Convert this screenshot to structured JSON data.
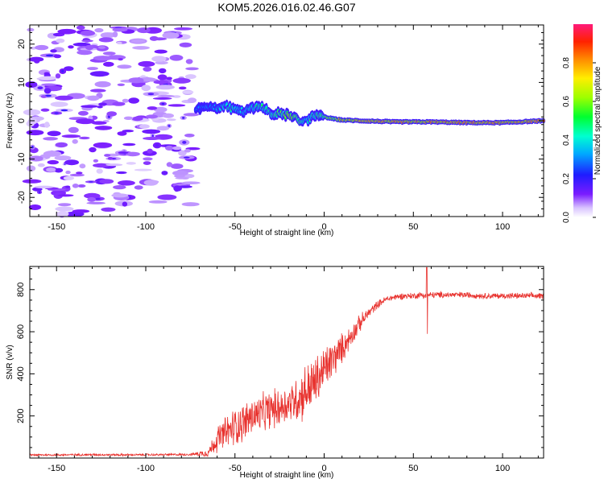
{
  "title": "KOM5.2026.016.02.46.G07",
  "chart_data": [
    {
      "type": "heatmap",
      "name": "spectrogram",
      "xlabel": "Height of straight line (km)",
      "ylabel": "Frequency (Hz)",
      "xlim": [
        -165,
        123
      ],
      "ylim": [
        -25,
        25
      ],
      "xticks": [
        -150,
        -100,
        -50,
        0,
        50,
        100
      ],
      "yticks": [
        -20,
        -10,
        0,
        10,
        20
      ],
      "noise_region_x": [
        -165,
        -72
      ],
      "ridge": [
        {
          "x": -72,
          "f": 3.0,
          "amp": 0.3
        },
        {
          "x": -65,
          "f": 3.5,
          "amp": 0.35
        },
        {
          "x": -60,
          "f": 3.5,
          "amp": 0.4
        },
        {
          "x": -55,
          "f": 3.8,
          "amp": 0.45
        },
        {
          "x": -50,
          "f": 3.0,
          "amp": 0.45
        },
        {
          "x": -45,
          "f": 2.5,
          "amp": 0.4
        },
        {
          "x": -40,
          "f": 3.5,
          "amp": 0.45
        },
        {
          "x": -35,
          "f": 3.8,
          "amp": 0.5
        },
        {
          "x": -30,
          "f": 2.0,
          "amp": 0.5
        },
        {
          "x": -25,
          "f": 1.8,
          "amp": 0.6
        },
        {
          "x": -20,
          "f": 1.5,
          "amp": 0.7
        },
        {
          "x": -15,
          "f": 0.5,
          "amp": 0.65
        },
        {
          "x": -12,
          "f": -0.5,
          "amp": 0.45
        },
        {
          "x": -8,
          "f": 0.5,
          "amp": 0.5
        },
        {
          "x": -5,
          "f": 1.5,
          "amp": 0.55
        },
        {
          "x": 0,
          "f": 1.0,
          "amp": 0.6
        },
        {
          "x": 5,
          "f": 0.5,
          "amp": 0.7
        },
        {
          "x": 10,
          "f": 0.2,
          "amp": 0.75
        },
        {
          "x": 20,
          "f": 0.0,
          "amp": 0.8
        },
        {
          "x": 40,
          "f": -0.3,
          "amp": 0.85
        },
        {
          "x": 60,
          "f": -0.3,
          "amp": 0.85
        },
        {
          "x": 80,
          "f": -0.5,
          "amp": 0.85
        },
        {
          "x": 100,
          "f": -0.5,
          "amp": 0.85
        },
        {
          "x": 123,
          "f": 0.0,
          "amp": 0.85
        }
      ]
    },
    {
      "type": "colorbar",
      "name": "colorbar",
      "label": "Normalized spectral amplitude",
      "range": [
        0,
        1
      ],
      "ticks": [
        "0.0",
        "0.2",
        "0.4",
        "0.6",
        "0.8"
      ]
    },
    {
      "type": "line",
      "name": "snr",
      "xlabel": "Height of straight line (km)",
      "ylabel": "SNR (v/v)",
      "xlim": [
        -165,
        123
      ],
      "ylim": [
        0,
        910
      ],
      "xticks": [
        -150,
        -100,
        -50,
        0,
        50,
        100
      ],
      "yticks": [
        200,
        400,
        600,
        800
      ],
      "color": "#e8322e",
      "series": [
        {
          "name": "SNR",
          "x": [
            -165,
            -150,
            -130,
            -110,
            -90,
            -75,
            -65,
            -60,
            -55,
            -50,
            -45,
            -40,
            -35,
            -30,
            -25,
            -20,
            -15,
            -10,
            -5,
            0,
            5,
            10,
            15,
            20,
            25,
            30,
            35,
            40,
            45,
            50,
            55,
            57,
            60,
            70,
            80,
            90,
            100,
            110,
            123
          ],
          "y": [
            15,
            15,
            16,
            15,
            16,
            17,
            25,
            90,
            120,
            150,
            170,
            200,
            210,
            230,
            240,
            260,
            280,
            320,
            360,
            420,
            470,
            520,
            580,
            640,
            690,
            730,
            755,
            765,
            770,
            770,
            775,
            770,
            775,
            775,
            775,
            770,
            770,
            770,
            770
          ],
          "noise": [
            5,
            5,
            5,
            5,
            5,
            5,
            20,
            60,
            80,
            90,
            90,
            90,
            90,
            90,
            90,
            90,
            110,
            130,
            120,
            110,
            90,
            70,
            50,
            40,
            25,
            18,
            15,
            15,
            15,
            15,
            15,
            15,
            15,
            14,
            14,
            14,
            14,
            14,
            14
          ],
          "spike": {
            "x": 57.5,
            "high": 905,
            "low": 590
          }
        }
      ]
    }
  ]
}
